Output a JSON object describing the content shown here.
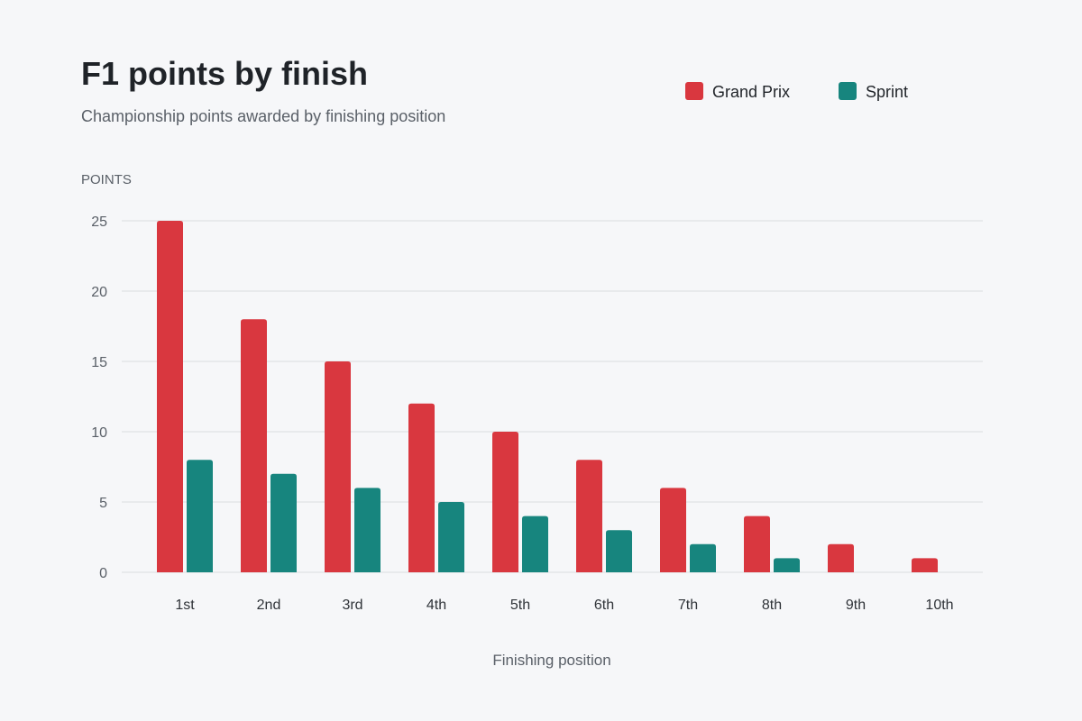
{
  "colors": {
    "background": "#f6f7f9",
    "grid": "#e3e5e8",
    "title": "#1f2328",
    "subtitle": "#5a6068",
    "axis_text": "#5a6068",
    "tick_text": "#2f3338"
  },
  "chart_data": {
    "type": "bar",
    "title": "F1 points by finish",
    "subtitle": "Championship points awarded by finishing position",
    "ylabel": "POINTS",
    "xlabel": "Finishing position",
    "ylim": [
      0,
      25
    ],
    "yticks": [
      0,
      5,
      10,
      15,
      20,
      25
    ],
    "grid": true,
    "legend_position": "top-right",
    "categories": [
      "1st",
      "2nd",
      "3rd",
      "4th",
      "5th",
      "6th",
      "7th",
      "8th",
      "9th",
      "10th"
    ],
    "series": [
      {
        "name": "Grand Prix",
        "color": "#d9373f",
        "values": [
          25,
          18,
          15,
          12,
          10,
          8,
          6,
          4,
          2,
          1
        ]
      },
      {
        "name": "Sprint",
        "color": "#17857e",
        "values": [
          8,
          7,
          6,
          5,
          4,
          3,
          2,
          1,
          0,
          0
        ]
      }
    ]
  }
}
